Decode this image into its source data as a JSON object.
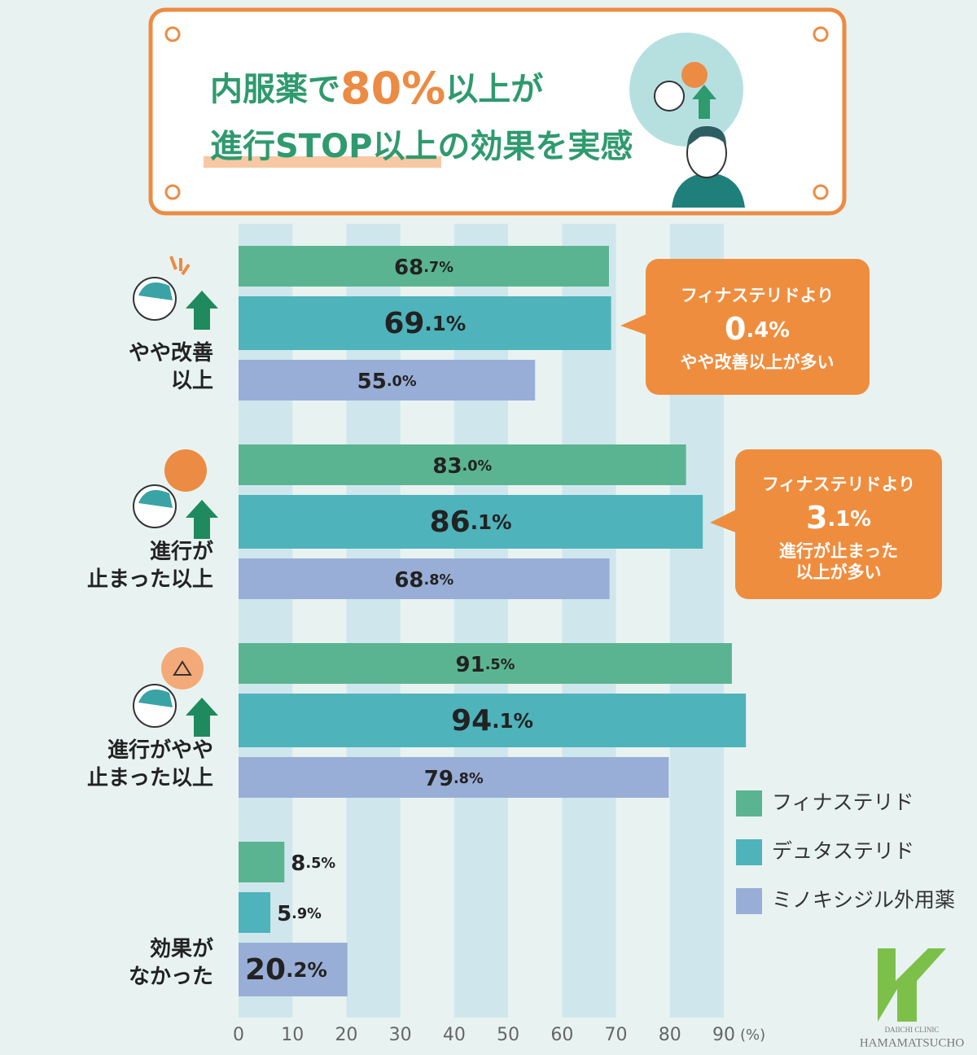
{
  "chart_data": {
    "type": "hbar",
    "title_lines": [
      "内服薬で80%以上が",
      "進行STOP以上の効果を実感"
    ],
    "categories": [
      "やや改善\n以上",
      "進行が\n止まった以上",
      "進行がやや\n止まった以上",
      "効果が\nなかった"
    ],
    "series": [
      {
        "name": "フィナステリド",
        "color": "#5bb491",
        "values": [
          68.7,
          83.0,
          91.5,
          8.5
        ],
        "value_labels": [
          "68.7%",
          "83.0%",
          "91.5%",
          "8.5%"
        ]
      },
      {
        "name": "デュタステリド",
        "color": "#4fb3bb",
        "values": [
          69.1,
          86.1,
          94.1,
          5.9
        ],
        "value_labels": [
          "69.1%",
          "86.1%",
          "94.1%",
          "5.9%"
        ]
      },
      {
        "name": "ミノキシジル外用薬",
        "color": "#99aed6",
        "values": [
          55.0,
          68.8,
          79.8,
          20.2
        ],
        "value_labels": [
          "55.0%",
          "68.8%",
          "79.8%",
          "20.2%"
        ]
      }
    ],
    "xlim": [
      0,
      90
    ],
    "xticks": [
      0,
      10,
      20,
      30,
      40,
      50,
      60,
      70,
      80,
      90
    ],
    "x_unit": "(%)",
    "annotations": [
      {
        "lines": [
          "フィナステリドより",
          "0.4%",
          "やや改善以上が多い"
        ]
      },
      {
        "lines": [
          "フィナステリドより",
          "3.1%",
          "進行が止まった",
          "以上が多い"
        ]
      }
    ],
    "logo": [
      "DAIICHI CLINIC",
      "HAMAMATSUCHO"
    ]
  }
}
